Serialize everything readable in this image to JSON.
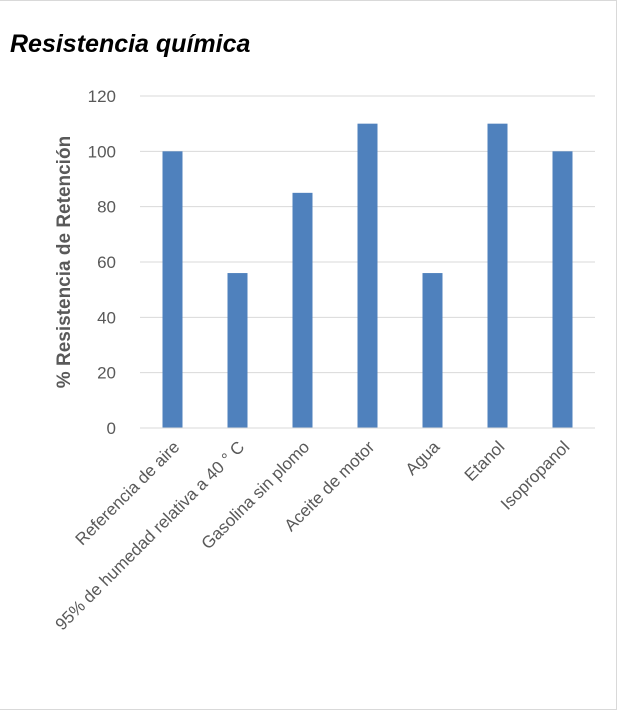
{
  "chart_data": {
    "type": "bar",
    "title": "Resistencia química",
    "ylabel": "% Resistencia de Retención",
    "xlabel": "",
    "categories": [
      "Referencia de aire",
      "95% de humedad relativa a 40 ° C",
      "Gasolina sin plomo",
      "Aceite de motor",
      "Agua",
      "Etanol",
      "Isopropanol"
    ],
    "values": [
      100,
      56,
      85,
      110,
      56,
      110,
      100
    ],
    "ylim": [
      0,
      120
    ],
    "yticks": [
      0,
      20,
      40,
      60,
      80,
      100,
      120
    ],
    "grid": true,
    "legend": "none",
    "bar_color": "#4f81bd",
    "grid_color": "#d9d9d9"
  }
}
